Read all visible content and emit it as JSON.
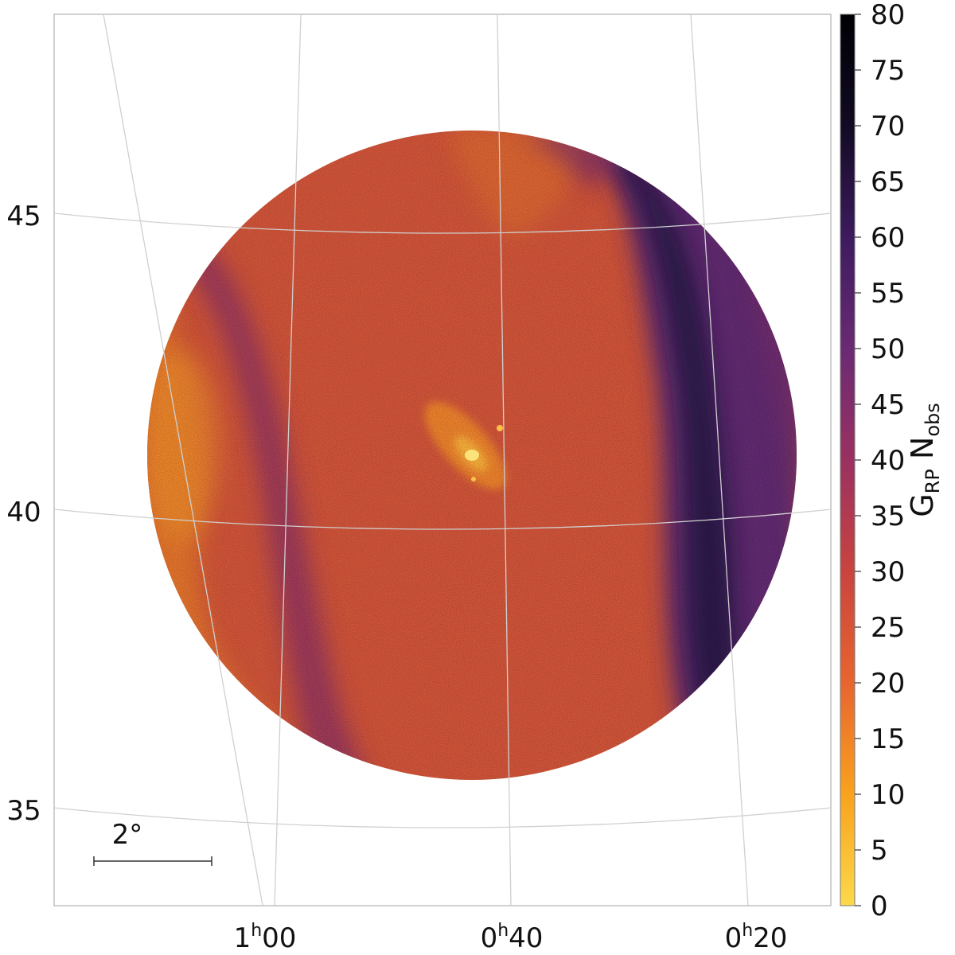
{
  "chart_data": {
    "type": "heatmap",
    "title": "",
    "colorbar": {
      "label_main": "G",
      "label_sub": "RP",
      "label_main2": " N",
      "label_sub2": "obs",
      "min": 0,
      "max": 80,
      "ticks": [
        0,
        5,
        10,
        15,
        20,
        25,
        30,
        35,
        40,
        45,
        50,
        55,
        60,
        65,
        70,
        75,
        80
      ],
      "colormap": "inferno_r",
      "stops": [
        "#fcd94a",
        "#f9a21e",
        "#e7652f",
        "#c9443f",
        "#9a3160",
        "#6a2a74",
        "#3d1b5e",
        "#120a23",
        "#000004"
      ]
    },
    "ra_ticks": [
      {
        "h": "1",
        "m": "00"
      },
      {
        "h": "0",
        "m": "40"
      },
      {
        "h": "0",
        "m": "20"
      }
    ],
    "dec_ticks": [
      "45",
      "40",
      "35"
    ],
    "scale_bar": {
      "label": "2°",
      "length_deg": 2
    },
    "map_region": "circular field centred near RA 0h42m, Dec +41°, radius ~6°",
    "features": [
      {
        "kind": "bright core",
        "name": "",
        "ra_h": 0.71,
        "dec": 41.3,
        "value": 12
      },
      {
        "kind": "dense scan band",
        "ra_h_range": [
          0.33,
          0.4
        ],
        "value_range": [
          55,
          72
        ]
      },
      {
        "kind": "moderate scan band",
        "ra_h_range": [
          0.82,
          0.9
        ],
        "value_range": [
          38,
          48
        ]
      },
      {
        "kind": "background",
        "value_range": [
          22,
          34
        ]
      }
    ]
  }
}
